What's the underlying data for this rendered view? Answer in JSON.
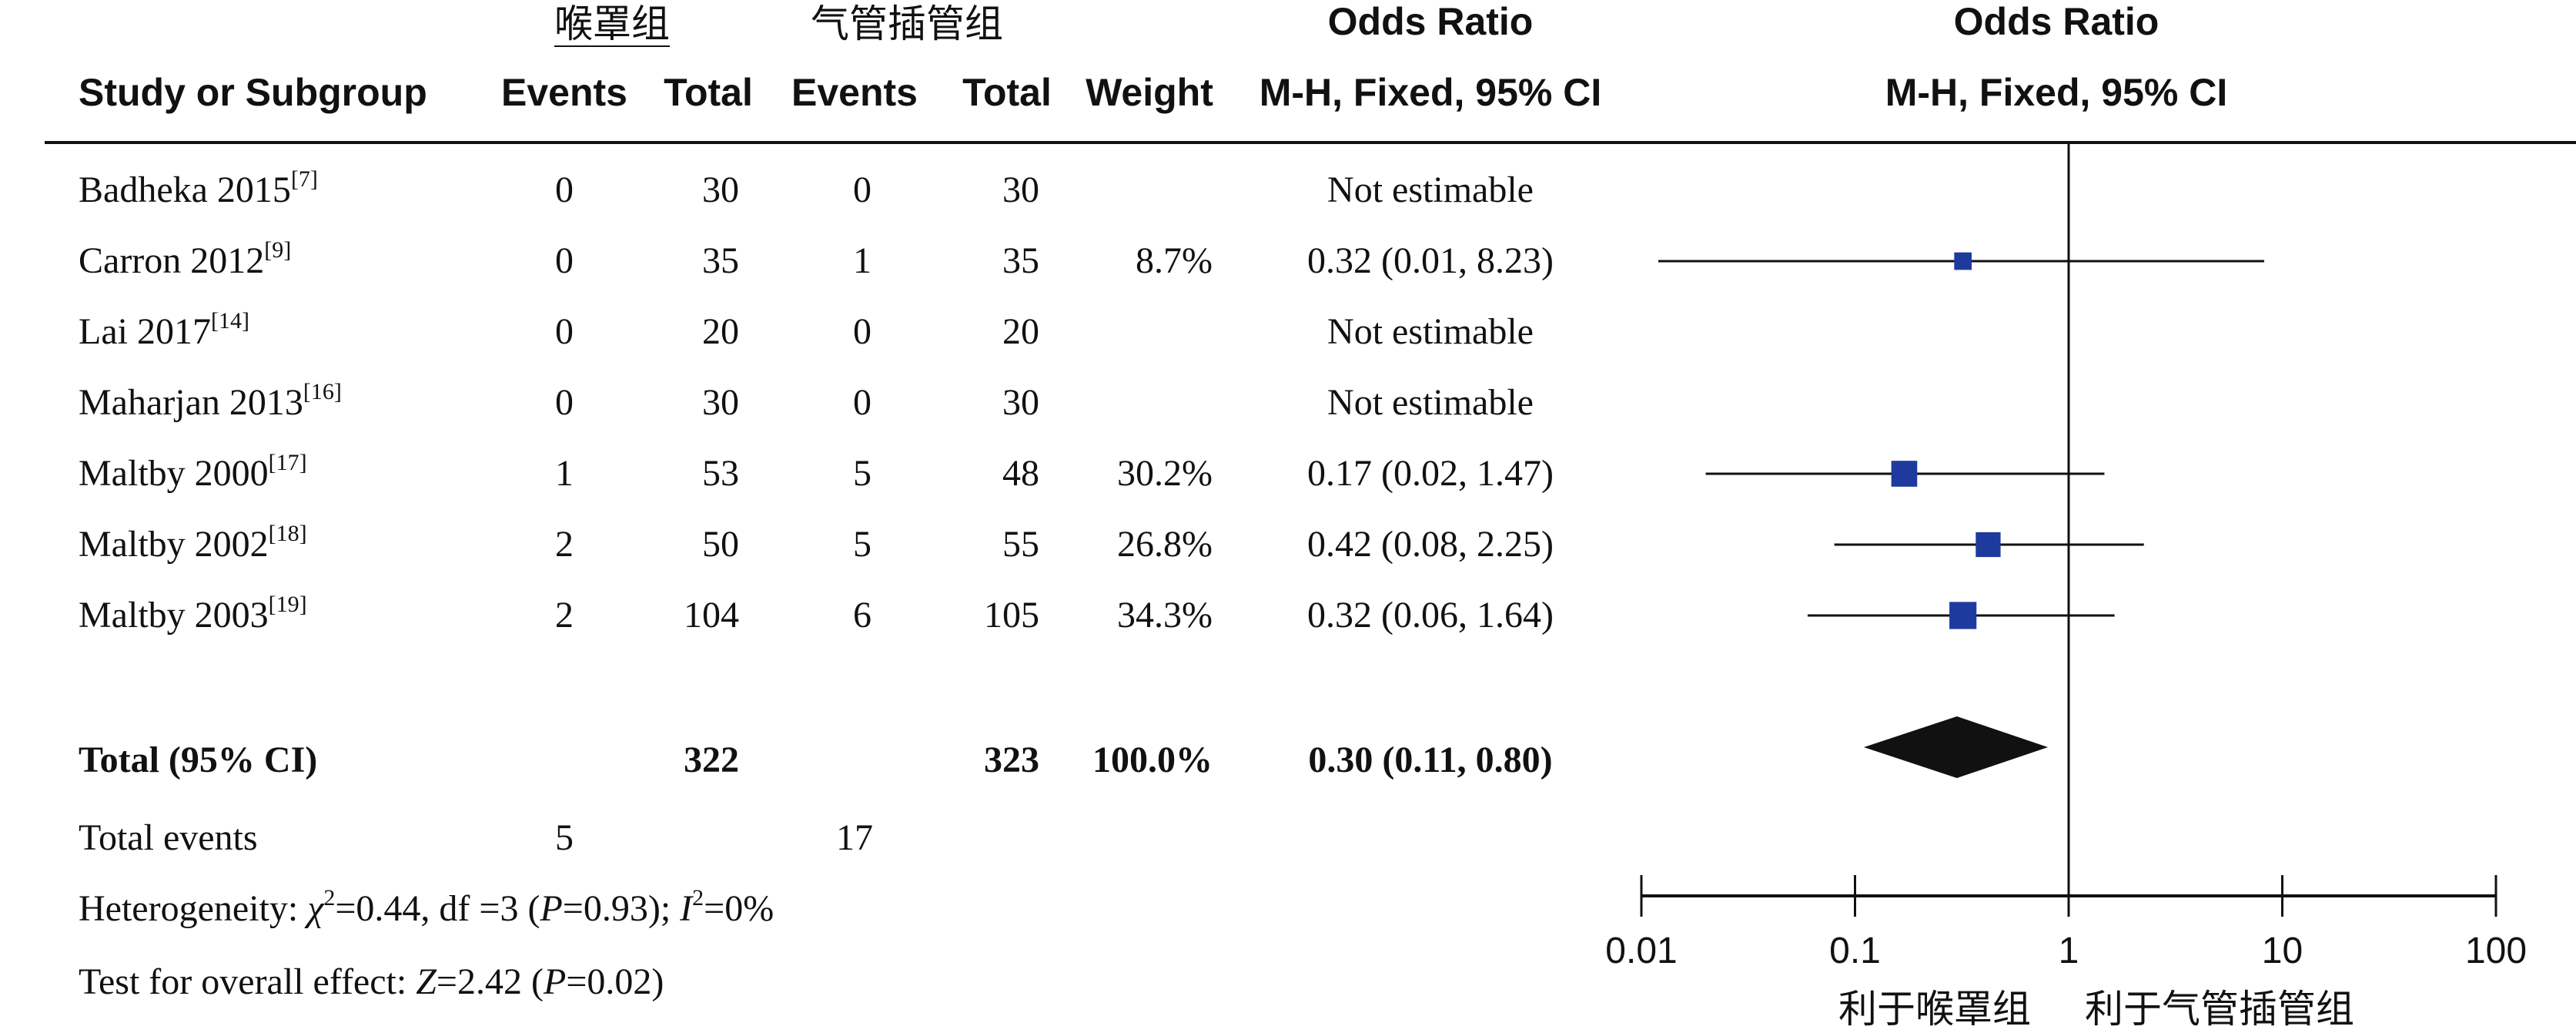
{
  "headers": {
    "group1": "喉罩组",
    "group2": "气管插管组",
    "study": "Study or Subgroup",
    "events1": "Events",
    "total1": "Total",
    "events2": "Events",
    "total2": "Total",
    "weight": "Weight",
    "or_title_table": "Odds Ratio",
    "or_method_table": "M-H, Fixed, 95% CI",
    "or_title_plot": "Odds Ratio",
    "or_method_plot": "M-H, Fixed, 95% CI"
  },
  "studies": [
    {
      "name": "Badheka 2015",
      "ref": "[7]",
      "e1": "0",
      "t1": "30",
      "e2": "0",
      "t2": "30",
      "weight": "",
      "ci_text": "Not estimable",
      "or": null,
      "lo": null,
      "hi": null,
      "w": null
    },
    {
      "name": "Carron 2012",
      "ref": "[9]",
      "e1": "0",
      "t1": "35",
      "e2": "1",
      "t2": "35",
      "weight": "8.7%",
      "ci_text": "0.32 (0.01, 8.23)",
      "or": 0.32,
      "lo": 0.012,
      "hi": 8.23,
      "w": 8.7
    },
    {
      "name": "Lai 2017",
      "ref": "[14]",
      "e1": "0",
      "t1": "20",
      "e2": "0",
      "t2": "20",
      "weight": "",
      "ci_text": "Not estimable",
      "or": null,
      "lo": null,
      "hi": null,
      "w": null
    },
    {
      "name": "Maharjan 2013",
      "ref": "[16]",
      "e1": "0",
      "t1": "30",
      "e2": "0",
      "t2": "30",
      "weight": "",
      "ci_text": "Not estimable",
      "or": null,
      "lo": null,
      "hi": null,
      "w": null
    },
    {
      "name": "Maltby 2000",
      "ref": "[17]",
      "e1": "1",
      "t1": "53",
      "e2": "5",
      "t2": "48",
      "weight": "30.2%",
      "ci_text": "0.17 (0.02, 1.47)",
      "or": 0.17,
      "lo": 0.02,
      "hi": 1.47,
      "w": 30.2
    },
    {
      "name": "Maltby 2002",
      "ref": "[18]",
      "e1": "2",
      "t1": "50",
      "e2": "5",
      "t2": "55",
      "weight": "26.8%",
      "ci_text": "0.42 (0.08, 2.25)",
      "or": 0.42,
      "lo": 0.08,
      "hi": 2.25,
      "w": 26.8
    },
    {
      "name": "Maltby 2003",
      "ref": "[19]",
      "e1": "2",
      "t1": "104",
      "e2": "6",
      "t2": "105",
      "weight": "34.3%",
      "ci_text": "0.32 (0.06, 1.64)",
      "or": 0.32,
      "lo": 0.06,
      "hi": 1.64,
      "w": 34.3
    }
  ],
  "total": {
    "label": "Total (95% CI)",
    "t1": "322",
    "t2": "323",
    "weight": "100.0%",
    "ci_text": "0.30 (0.11, 0.80)",
    "or": 0.3,
    "lo": 0.11,
    "hi": 0.8
  },
  "total_events": {
    "label": "Total events",
    "e1": "5",
    "e2": "17"
  },
  "heterogeneity": {
    "prefix": "Heterogeneity: ",
    "chi": "χ",
    "chi_sup": "2",
    "chi_val": "=0.44, df =3 (",
    "p_sym": "P",
    "p_val": "=0.93); ",
    "i_sym": "I",
    "i_sup": "2",
    "i_val": "=0%"
  },
  "overall": {
    "prefix": "Test for overall effect: ",
    "z_sym": "Z",
    "z_val": "=2.42 (",
    "p_sym": "P",
    "p_val": "=0.02)"
  },
  "chart_data": {
    "type": "scatter",
    "title": "Odds Ratio",
    "subtitle": "M-H, Fixed, 95% CI",
    "x_scale": "log",
    "xlim": [
      0.01,
      100
    ],
    "ticks": [
      0.01,
      0.1,
      1,
      10,
      100
    ],
    "tick_labels": [
      "0.01",
      "0.1",
      "1",
      "10",
      "100"
    ],
    "null_line": 1,
    "favours_left": "利于喉罩组",
    "favours_right": "利于气管插管组",
    "colors": {
      "study_marker": "#1f3a9e",
      "summary": "#111111",
      "line": "#111111"
    }
  }
}
